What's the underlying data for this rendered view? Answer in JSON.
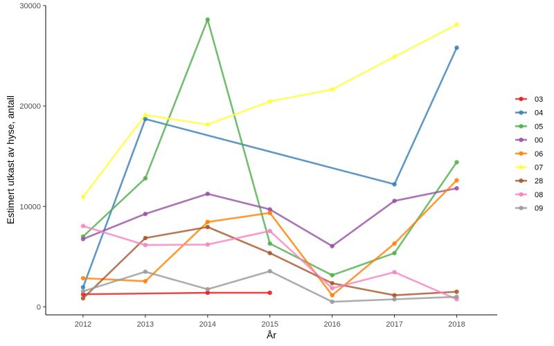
{
  "chart_data": {
    "type": "line",
    "xlabel": "År",
    "ylabel": "Estimert utkast av hyse, antall",
    "x_ticks": [
      "2012",
      "2013",
      "2014",
      "2015",
      "2016",
      "2017",
      "2018"
    ],
    "y_ticks": [
      "0",
      "10000",
      "20000",
      "30000"
    ],
    "ylim": [
      -800,
      30000
    ],
    "xlim": [
      2011.4,
      2018.65
    ],
    "grid": false,
    "legend_position": "right",
    "series": [
      {
        "name": "03",
        "color": "#E41A1C",
        "x": [
          2012,
          2014,
          2015
        ],
        "y": [
          1250,
          1400,
          1400
        ]
      },
      {
        "name": "04",
        "color": "#377EB8",
        "x": [
          2012,
          2013,
          2017,
          2018
        ],
        "y": [
          1950,
          18700,
          12200,
          25800
        ]
      },
      {
        "name": "05",
        "color": "#4DAF4A",
        "x": [
          2012,
          2013,
          2014,
          2015,
          2016,
          2017,
          2018
        ],
        "y": [
          7000,
          12800,
          28600,
          6300,
          3150,
          5350,
          14400
        ]
      },
      {
        "name": "00",
        "color": "#984EA3",
        "x": [
          2012,
          2013,
          2014,
          2015,
          2016,
          2017,
          2018
        ],
        "y": [
          6750,
          9250,
          11250,
          9700,
          6050,
          10550,
          11800
        ]
      },
      {
        "name": "06",
        "color": "#FF7F00",
        "x": [
          2012,
          2013,
          2014,
          2015,
          2016,
          2017,
          2018
        ],
        "y": [
          2850,
          2550,
          8450,
          9350,
          1150,
          6300,
          12600
        ]
      },
      {
        "name": "07",
        "color": "#FFFF33",
        "x": [
          2012,
          2013,
          2014,
          2015,
          2016,
          2017,
          2018
        ],
        "y": [
          10950,
          19100,
          18150,
          20450,
          21650,
          24900,
          28100
        ]
      },
      {
        "name": "28",
        "color": "#A65628",
        "x": [
          2012,
          2013,
          2014,
          2015,
          2016,
          2017,
          2018
        ],
        "y": [
          850,
          6850,
          7950,
          5350,
          2350,
          1150,
          1500
        ]
      },
      {
        "name": "08",
        "color": "#F781BF",
        "x": [
          2012,
          2013,
          2014,
          2015,
          2016,
          2017,
          2018
        ],
        "y": [
          8050,
          6150,
          6200,
          7550,
          1850,
          3450,
          750
        ]
      },
      {
        "name": "09",
        "color": "#999999",
        "x": [
          2012,
          2013,
          2014,
          2015,
          2016,
          2017,
          2018
        ],
        "y": [
          1550,
          3500,
          1750,
          3550,
          500,
          750,
          1000
        ]
      }
    ]
  }
}
